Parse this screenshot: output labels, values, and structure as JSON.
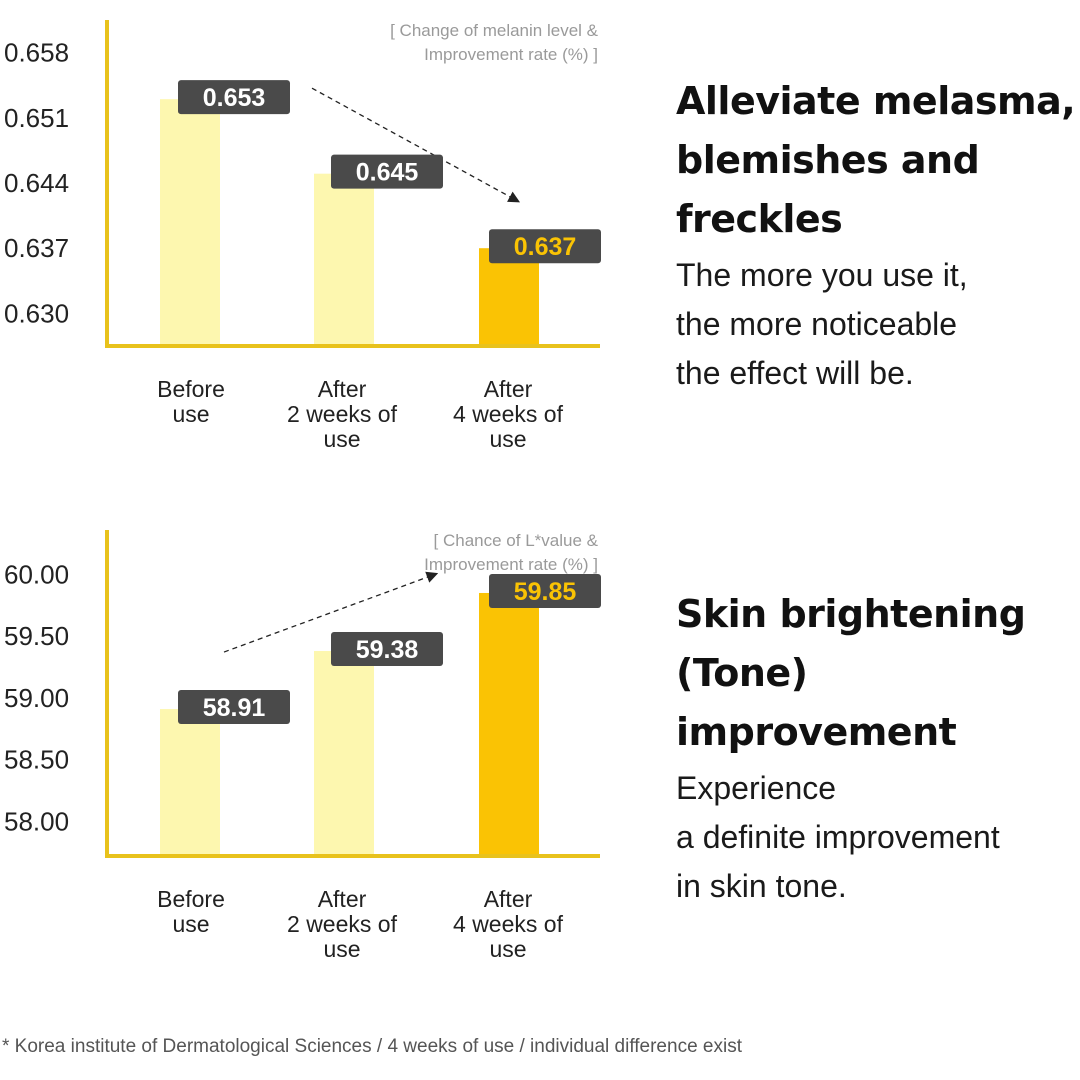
{
  "colors": {
    "axis": "#E8C21C",
    "bar_light": "#FDF7AF",
    "bar_highlight": "#FAC304",
    "label_box": "#4A4A4A",
    "label_text": "#FFFFFF",
    "label_highlight_text": "#FAC304",
    "arrow": "#222222"
  },
  "chart_data": [
    {
      "type": "bar",
      "note_lines": [
        "[ Change of melanin level &",
        "Improvement rate (%) ]"
      ],
      "categories": [
        [
          "Before",
          "use"
        ],
        [
          "After",
          "2 weeks of",
          "use"
        ],
        [
          "After",
          "4 weeks of",
          "use"
        ]
      ],
      "values": [
        0.653,
        0.645,
        0.637
      ],
      "value_labels": [
        "0.653",
        "0.645",
        "0.637"
      ],
      "highlight_index": 2,
      "yticks": [
        "0.658",
        "0.651",
        "0.644",
        "0.637",
        "0.630"
      ],
      "ytick_values": [
        0.658,
        0.651,
        0.644,
        0.637,
        0.63
      ],
      "ylim": [
        0.6265,
        0.6615
      ],
      "arrow_direction": "down"
    },
    {
      "type": "bar",
      "note_lines": [
        "[ Chance of L*value &",
        "Improvement rate (%) ]"
      ],
      "categories": [
        [
          "Before",
          "use"
        ],
        [
          "After",
          "2 weeks of",
          "use"
        ],
        [
          "After",
          "4 weeks of",
          "use"
        ]
      ],
      "values": [
        58.91,
        59.38,
        59.85
      ],
      "value_labels": [
        "58.91",
        "59.38",
        "59.85"
      ],
      "highlight_index": 2,
      "yticks": [
        "60.00",
        "59.50",
        "59.00",
        "58.50",
        "58.00"
      ],
      "ytick_values": [
        60.0,
        59.5,
        59.0,
        58.5,
        58.0
      ],
      "ylim": [
        57.72,
        60.36
      ],
      "arrow_direction": "up"
    }
  ],
  "sections": [
    {
      "heading_lines": [
        "Alleviate melasma,",
        "blemishes and",
        "freckles"
      ],
      "body_lines": [
        "The more you use it,",
        "the more noticeable",
        "the effect will be."
      ]
    },
    {
      "heading_lines": [
        "Skin brightening",
        "(Tone)",
        "improvement"
      ],
      "body_lines": [
        "Experience",
        "a definite improvement",
        "in skin tone."
      ]
    }
  ],
  "footnote": "* Korea institute of Dermatological Sciences / 4 weeks of use / individual difference exist"
}
